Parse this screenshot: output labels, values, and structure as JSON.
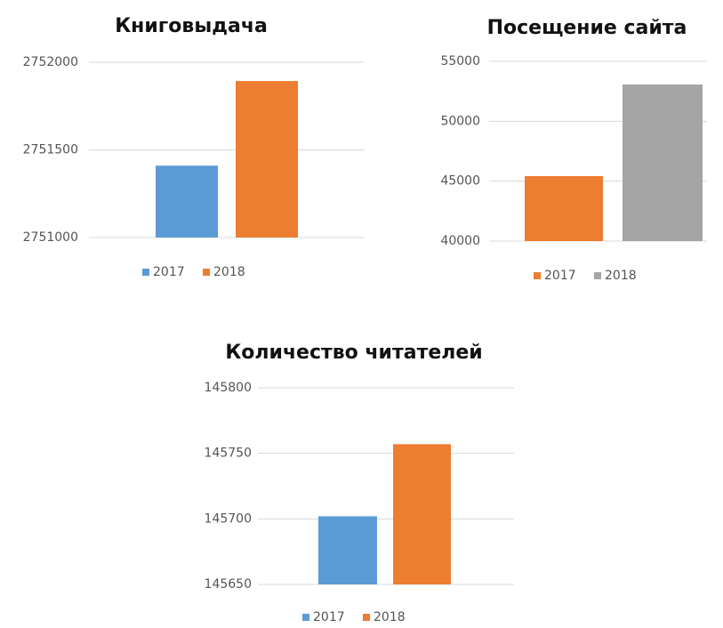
{
  "chart_data": [
    {
      "type": "bar",
      "title": "Книговыдача",
      "series": [
        {
          "name": "2017",
          "color": "#5b9bd5",
          "values": [
            2751410
          ]
        },
        {
          "name": "2018",
          "color": "#ed7d31",
          "values": [
            2751893
          ]
        }
      ],
      "ylim": [
        2751000,
        2752000
      ],
      "yticks": [
        2751000,
        2751500,
        2752000
      ],
      "grid": true
    },
    {
      "type": "bar",
      "title": "Посещение сайта",
      "series": [
        {
          "name": "2017",
          "color": "#ed7d31",
          "values": [
            45420
          ]
        },
        {
          "name": "2018",
          "color": "#a5a5a5",
          "values": [
            53070
          ]
        }
      ],
      "ylim": [
        40000,
        55000
      ],
      "yticks": [
        40000,
        45000,
        50000,
        55000
      ],
      "grid": true
    },
    {
      "type": "bar",
      "title": "Количество читателей",
      "series": [
        {
          "name": "2017",
          "color": "#5b9bd5",
          "values": [
            145702
          ]
        },
        {
          "name": "2018",
          "color": "#ed7d31",
          "values": [
            145757
          ]
        }
      ],
      "ylim": [
        145650,
        145800
      ],
      "yticks": [
        145650,
        145700,
        145750,
        145800
      ],
      "grid": true
    }
  ]
}
